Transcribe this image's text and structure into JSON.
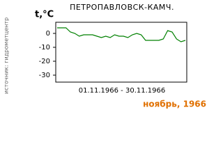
{
  "chart_data": {
    "type": "line",
    "title": "ПЕТРОПАВЛОВСК-КАМЧ.",
    "y_label": "t,°C",
    "side_label": "источник: гидрометцентр",
    "x_label": "01.11.1966 - 30.11.1966",
    "period": "ноябрь, 1966",
    "color": "#008000",
    "values": [
      4,
      4,
      4,
      1,
      0,
      -2,
      -1,
      -1,
      -1,
      -2,
      -3,
      -2,
      -3,
      -1,
      -2,
      -2,
      -3,
      -1,
      0,
      -1,
      -5,
      -5,
      -5,
      -5,
      -4,
      2,
      1,
      -4,
      -6,
      -5
    ],
    "ylim": [
      -35,
      8
    ],
    "yticks": [
      0,
      -10,
      -20,
      -30
    ]
  }
}
